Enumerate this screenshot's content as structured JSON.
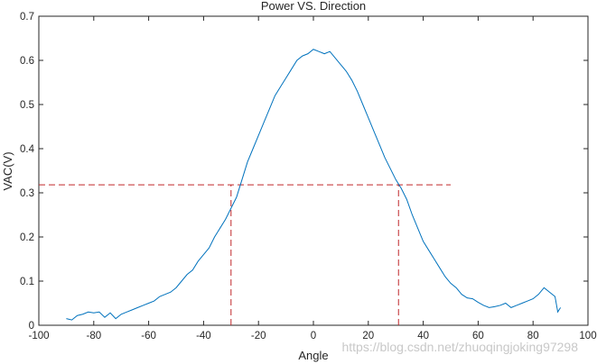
{
  "chart_data": {
    "type": "line",
    "title": "Power VS. Direction",
    "xlabel": "Angle",
    "ylabel": "VAC(V)",
    "xlim": [
      -100,
      100
    ],
    "ylim": [
      0,
      0.7
    ],
    "xticks": [
      -100,
      -80,
      -60,
      -40,
      -20,
      0,
      20,
      40,
      60,
      80,
      100
    ],
    "yticks": [
      0,
      0.1,
      0.2,
      0.3,
      0.4,
      0.5,
      0.6,
      0.7
    ],
    "grid": false,
    "colors": {
      "series": "#0072bd",
      "reference": "#c0282a",
      "axes": "#262626"
    },
    "series": [
      {
        "x": [
          -90,
          -88,
          -86,
          -84,
          -82,
          -80,
          -78,
          -76,
          -74,
          -72,
          -70,
          -68,
          -66,
          -64,
          -62,
          -60,
          -58,
          -56,
          -54,
          -52,
          -50,
          -48,
          -46,
          -44,
          -42,
          -40,
          -38,
          -36,
          -34,
          -32,
          -30,
          -28,
          -26,
          -24,
          -22,
          -20,
          -18,
          -16,
          -14,
          -12,
          -10,
          -8,
          -6,
          -4,
          -2,
          0,
          2,
          4,
          6,
          8,
          10,
          12,
          14,
          16,
          18,
          20,
          22,
          24,
          26,
          28,
          30,
          32,
          34,
          36,
          38,
          40,
          42,
          44,
          46,
          48,
          50,
          52,
          54,
          56,
          58,
          60,
          62,
          64,
          66,
          68,
          70,
          72,
          74,
          76,
          78,
          80,
          82,
          84,
          86,
          88,
          89,
          90
        ],
        "y": [
          0.015,
          0.012,
          0.022,
          0.025,
          0.03,
          0.028,
          0.03,
          0.018,
          0.028,
          0.015,
          0.025,
          0.03,
          0.035,
          0.04,
          0.045,
          0.05,
          0.055,
          0.065,
          0.07,
          0.075,
          0.085,
          0.1,
          0.115,
          0.125,
          0.145,
          0.16,
          0.175,
          0.2,
          0.22,
          0.24,
          0.265,
          0.29,
          0.33,
          0.37,
          0.4,
          0.43,
          0.46,
          0.49,
          0.52,
          0.54,
          0.56,
          0.58,
          0.6,
          0.61,
          0.615,
          0.625,
          0.62,
          0.615,
          0.62,
          0.605,
          0.59,
          0.575,
          0.555,
          0.53,
          0.5,
          0.47,
          0.44,
          0.41,
          0.38,
          0.355,
          0.33,
          0.31,
          0.285,
          0.25,
          0.22,
          0.19,
          0.17,
          0.15,
          0.13,
          0.11,
          0.095,
          0.085,
          0.07,
          0.062,
          0.06,
          0.052,
          0.045,
          0.04,
          0.042,
          0.045,
          0.05,
          0.04,
          0.045,
          0.05,
          0.055,
          0.06,
          0.07,
          0.085,
          0.075,
          0.065,
          0.03,
          0.04
        ]
      }
    ],
    "reference_lines": {
      "horizontal": {
        "y": 0.318,
        "x_from": -100,
        "x_to": 50
      },
      "vertical": [
        {
          "x": -30,
          "y_from": 0,
          "y_to": 0.318
        },
        {
          "x": 31,
          "y_from": 0,
          "y_to": 0.318
        }
      ]
    }
  },
  "watermark": "https://blog.csdn.net/zhuoqingjoking97298"
}
